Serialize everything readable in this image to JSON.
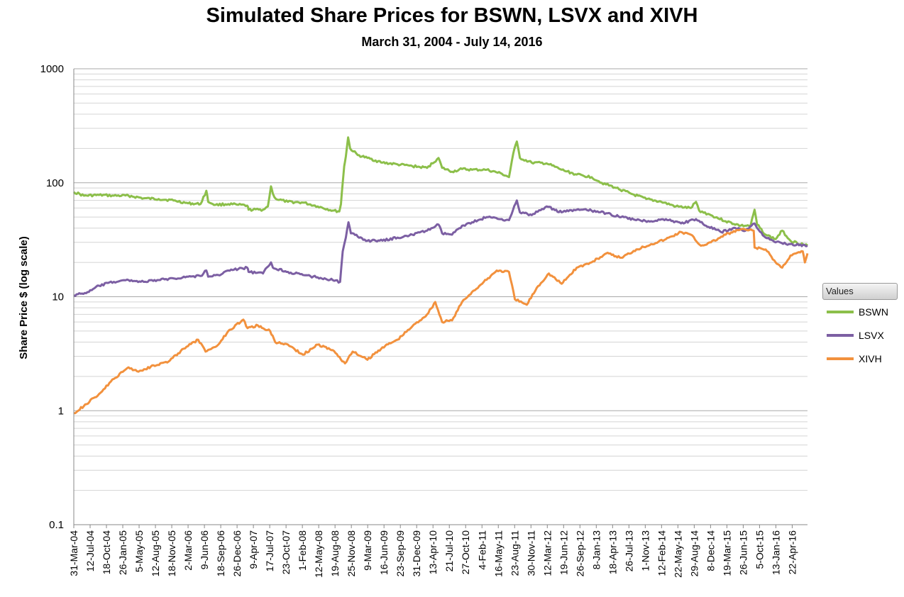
{
  "chart_data": {
    "type": "line",
    "title": "Simulated Share Prices for BSWN, LSVX and XIVH",
    "subtitle": "March 31, 2004 - July 14, 2016",
    "ylabel": "Share Price $ (log scale)",
    "xlabel": "",
    "yscale": "log",
    "ylim": [
      0.1,
      1000
    ],
    "yticks": [
      "1000",
      "100",
      "10",
      "1",
      "0.1"
    ],
    "xlim": [
      "2004-03-31",
      "2016-07-14"
    ],
    "xticks": [
      "31-Mar-04",
      "12-Jul-04",
      "18-Oct-04",
      "26-Jan-05",
      "5-May-05",
      "12-Aug-05",
      "18-Nov-05",
      "2-Mar-06",
      "9-Jun-06",
      "18-Sep-06",
      "26-Dec-06",
      "9-Apr-07",
      "17-Jul-07",
      "23-Oct-07",
      "1-Feb-08",
      "12-May-08",
      "19-Aug-08",
      "25-Nov-08",
      "9-Mar-09",
      "16-Jun-09",
      "23-Sep-09",
      "31-Dec-09",
      "13-Apr-10",
      "21-Jul-10",
      "27-Oct-10",
      "4-Feb-11",
      "16-May-11",
      "23-Aug-11",
      "30-Nov-11",
      "12-Mar-12",
      "19-Jun-12",
      "26-Sep-12",
      "8-Jan-13",
      "18-Apr-13",
      "26-Jul-13",
      "1-Nov-13",
      "12-Feb-14",
      "22-May-14",
      "29-Aug-14",
      "8-Dec-14",
      "19-Mar-15",
      "26-Jun-15",
      "5-Oct-15",
      "13-Jan-16",
      "22-Apr-16"
    ],
    "grid": true,
    "legend_title": "Values",
    "legend_position": "right",
    "series": [
      {
        "name": "BSWN",
        "color": "#8cbf4a",
        "points": [
          [
            "2004-03-31",
            83
          ],
          [
            "2004-06-01",
            77
          ],
          [
            "2004-09-01",
            78
          ],
          [
            "2004-12-01",
            77
          ],
          [
            "2005-03-01",
            77
          ],
          [
            "2005-06-01",
            73
          ],
          [
            "2005-09-01",
            72
          ],
          [
            "2005-12-01",
            70
          ],
          [
            "2006-03-01",
            66
          ],
          [
            "2006-05-15",
            65
          ],
          [
            "2006-06-20",
            85
          ],
          [
            "2006-07-01",
            68
          ],
          [
            "2006-08-15",
            64
          ],
          [
            "2006-11-01",
            65
          ],
          [
            "2007-01-01",
            64
          ],
          [
            "2007-02-25",
            63
          ],
          [
            "2007-03-05",
            58
          ],
          [
            "2007-06-01",
            58
          ],
          [
            "2007-07-01",
            62
          ],
          [
            "2007-07-20",
            93
          ],
          [
            "2007-08-01",
            80
          ],
          [
            "2007-08-20",
            72
          ],
          [
            "2007-11-01",
            68
          ],
          [
            "2008-02-01",
            67
          ],
          [
            "2008-05-01",
            62
          ],
          [
            "2008-08-01",
            57
          ],
          [
            "2008-09-10",
            56
          ],
          [
            "2008-09-20",
            65
          ],
          [
            "2008-10-01",
            100
          ],
          [
            "2008-10-10",
            140
          ],
          [
            "2008-10-20",
            170
          ],
          [
            "2008-11-03",
            250
          ],
          [
            "2008-11-15",
            200
          ],
          [
            "2009-01-01",
            175
          ],
          [
            "2009-03-01",
            165
          ],
          [
            "2009-06-01",
            150
          ],
          [
            "2009-09-01",
            145
          ],
          [
            "2009-12-01",
            140
          ],
          [
            "2010-03-01",
            135
          ],
          [
            "2010-05-10",
            165
          ],
          [
            "2010-06-01",
            135
          ],
          [
            "2010-08-01",
            125
          ],
          [
            "2010-10-01",
            132
          ],
          [
            "2010-12-01",
            130
          ],
          [
            "2011-03-01",
            130
          ],
          [
            "2011-06-01",
            120
          ],
          [
            "2011-07-15",
            112
          ],
          [
            "2011-08-10",
            180
          ],
          [
            "2011-09-01",
            230
          ],
          [
            "2011-09-20",
            165
          ],
          [
            "2011-12-01",
            150
          ],
          [
            "2012-03-01",
            148
          ],
          [
            "2012-06-01",
            130
          ],
          [
            "2012-09-01",
            118
          ],
          [
            "2012-12-01",
            112
          ],
          [
            "2013-02-01",
            100
          ],
          [
            "2013-05-01",
            90
          ],
          [
            "2013-08-01",
            80
          ],
          [
            "2013-11-01",
            72
          ],
          [
            "2014-02-01",
            68
          ],
          [
            "2014-05-01",
            62
          ],
          [
            "2014-08-01",
            60
          ],
          [
            "2014-09-01",
            68
          ],
          [
            "2014-09-20",
            57
          ],
          [
            "2014-12-01",
            52
          ],
          [
            "2015-03-01",
            46
          ],
          [
            "2015-06-01",
            42
          ],
          [
            "2015-08-01",
            42
          ],
          [
            "2015-08-25",
            58
          ],
          [
            "2015-09-10",
            43
          ],
          [
            "2015-11-01",
            35
          ],
          [
            "2016-01-01",
            32
          ],
          [
            "2016-02-10",
            38
          ],
          [
            "2016-04-01",
            31
          ],
          [
            "2016-07-14",
            28
          ]
        ]
      },
      {
        "name": "LSVX",
        "color": "#7c5fa3",
        "points": [
          [
            "2004-03-31",
            10.3
          ],
          [
            "2004-07-01",
            11
          ],
          [
            "2004-09-01",
            12.5
          ],
          [
            "2004-12-01",
            13.5
          ],
          [
            "2005-03-01",
            14
          ],
          [
            "2005-06-01",
            13.5
          ],
          [
            "2005-09-01",
            14
          ],
          [
            "2005-12-01",
            14.5
          ],
          [
            "2006-03-01",
            15
          ],
          [
            "2006-05-15",
            15.2
          ],
          [
            "2006-06-20",
            17
          ],
          [
            "2006-07-01",
            15
          ],
          [
            "2006-09-01",
            15.5
          ],
          [
            "2006-11-01",
            17
          ],
          [
            "2007-01-01",
            17.5
          ],
          [
            "2007-02-25",
            18
          ],
          [
            "2007-03-05",
            16.5
          ],
          [
            "2007-06-01",
            16
          ],
          [
            "2007-07-20",
            20
          ],
          [
            "2007-08-01",
            18
          ],
          [
            "2007-11-01",
            16.5
          ],
          [
            "2008-02-01",
            15.5
          ],
          [
            "2008-05-01",
            14.8
          ],
          [
            "2008-08-01",
            14
          ],
          [
            "2008-09-15",
            13.5
          ],
          [
            "2008-10-01",
            25
          ],
          [
            "2008-10-20",
            33
          ],
          [
            "2008-11-05",
            45
          ],
          [
            "2008-11-20",
            36
          ],
          [
            "2009-03-01",
            31
          ],
          [
            "2009-06-01",
            31
          ],
          [
            "2009-09-01",
            33
          ],
          [
            "2009-12-01",
            35
          ],
          [
            "2010-03-01",
            38
          ],
          [
            "2010-05-10",
            43
          ],
          [
            "2010-06-01",
            36
          ],
          [
            "2010-08-01",
            35
          ],
          [
            "2010-10-01",
            42
          ],
          [
            "2010-12-01",
            45
          ],
          [
            "2011-03-01",
            50
          ],
          [
            "2011-06-01",
            48
          ],
          [
            "2011-07-15",
            47
          ],
          [
            "2011-09-01",
            70
          ],
          [
            "2011-09-20",
            55
          ],
          [
            "2011-12-01",
            52
          ],
          [
            "2012-03-01",
            62
          ],
          [
            "2012-06-01",
            55
          ],
          [
            "2012-09-01",
            58
          ],
          [
            "2012-12-01",
            57
          ],
          [
            "2013-03-01",
            54
          ],
          [
            "2013-06-01",
            50
          ],
          [
            "2013-09-01",
            47
          ],
          [
            "2013-12-01",
            46
          ],
          [
            "2014-03-01",
            48
          ],
          [
            "2014-06-01",
            44
          ],
          [
            "2014-09-01",
            48
          ],
          [
            "2014-11-01",
            42
          ],
          [
            "2015-02-01",
            37
          ],
          [
            "2015-05-01",
            40
          ],
          [
            "2015-07-01",
            38
          ],
          [
            "2015-08-25",
            44
          ],
          [
            "2015-09-10",
            40
          ],
          [
            "2015-11-01",
            33
          ],
          [
            "2016-01-01",
            30
          ],
          [
            "2016-04-01",
            29
          ],
          [
            "2016-07-14",
            28
          ]
        ]
      },
      {
        "name": "XIVH",
        "color": "#f2913d",
        "points": [
          [
            "2004-03-31",
            0.95
          ],
          [
            "2004-06-01",
            1.1
          ],
          [
            "2004-09-01",
            1.4
          ],
          [
            "2004-12-01",
            1.9
          ],
          [
            "2005-03-01",
            2.4
          ],
          [
            "2005-05-01",
            2.2
          ],
          [
            "2005-08-01",
            2.5
          ],
          [
            "2005-11-01",
            2.7
          ],
          [
            "2006-02-01",
            3.5
          ],
          [
            "2006-05-01",
            4.2
          ],
          [
            "2006-06-15",
            3.3
          ],
          [
            "2006-09-01",
            3.8
          ],
          [
            "2006-11-01",
            5
          ],
          [
            "2007-02-01",
            6.3
          ],
          [
            "2007-02-27",
            5.3
          ],
          [
            "2007-05-01",
            5.6
          ],
          [
            "2007-07-15",
            5
          ],
          [
            "2007-08-15",
            4
          ],
          [
            "2007-11-01",
            3.8
          ],
          [
            "2008-02-01",
            3.1
          ],
          [
            "2008-05-01",
            3.8
          ],
          [
            "2008-08-01",
            3.4
          ],
          [
            "2008-10-15",
            2.6
          ],
          [
            "2008-12-01",
            3.3
          ],
          [
            "2009-03-01",
            2.8
          ],
          [
            "2009-06-01",
            3.6
          ],
          [
            "2009-09-01",
            4.2
          ],
          [
            "2009-12-01",
            5.5
          ],
          [
            "2010-03-01",
            7
          ],
          [
            "2010-04-20",
            9
          ],
          [
            "2010-06-01",
            6
          ],
          [
            "2010-08-01",
            6.2
          ],
          [
            "2010-10-01",
            9
          ],
          [
            "2010-12-01",
            11
          ],
          [
            "2011-02-01",
            13
          ],
          [
            "2011-05-01",
            17
          ],
          [
            "2011-07-15",
            16.5
          ],
          [
            "2011-08-20",
            9.5
          ],
          [
            "2011-11-01",
            8.5
          ],
          [
            "2012-01-01",
            12
          ],
          [
            "2012-03-15",
            16
          ],
          [
            "2012-06-01",
            13
          ],
          [
            "2012-09-01",
            18
          ],
          [
            "2012-12-01",
            20
          ],
          [
            "2013-03-01",
            24
          ],
          [
            "2013-06-01",
            22
          ],
          [
            "2013-09-01",
            26
          ],
          [
            "2013-12-01",
            29
          ],
          [
            "2014-03-01",
            32
          ],
          [
            "2014-06-01",
            37
          ],
          [
            "2014-08-01",
            35
          ],
          [
            "2014-10-01",
            28
          ],
          [
            "2014-12-01",
            30
          ],
          [
            "2015-03-01",
            35
          ],
          [
            "2015-06-01",
            39
          ],
          [
            "2015-08-20",
            38
          ],
          [
            "2015-08-25",
            27
          ],
          [
            "2015-11-01",
            26
          ],
          [
            "2016-01-01",
            20
          ],
          [
            "2016-02-10",
            18
          ],
          [
            "2016-04-01",
            23
          ],
          [
            "2016-06-15",
            25
          ],
          [
            "2016-06-28",
            20
          ],
          [
            "2016-07-14",
            24
          ]
        ]
      }
    ]
  }
}
